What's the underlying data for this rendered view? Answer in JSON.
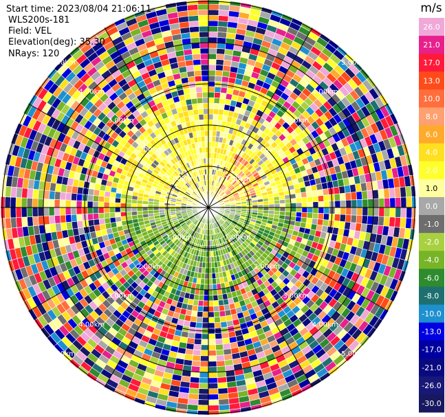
{
  "header": {
    "start_time": "Start time: 2023/08/04 21:06:11",
    "instrument": "WLS200s-181",
    "field": "Field: VEL",
    "elevation": "Elevation(deg): 35.30",
    "nrays": "NRays: 120"
  },
  "colorbar": {
    "unit": "m/s",
    "labels": [
      "26.0",
      "21.0",
      "17.0",
      "13.0",
      "10.0",
      "8.0",
      "6.0",
      "4.0",
      "2.0",
      "1.0",
      "0.0",
      "-1.0",
      "-2.0",
      "-4.0",
      "-6.0",
      "-8.0",
      "-10.0",
      "-13.0",
      "-17.0",
      "-21.0",
      "-26.0",
      "-30.0"
    ],
    "colors": [
      "#f0a8d8",
      "#e8208c",
      "#ff1a3a",
      "#ff4a1a",
      "#ff6e3c",
      "#ffa070",
      "#ffaa2a",
      "#ffe020",
      "#ffff2a",
      "#ffffa0",
      "#a8a8a8",
      "#6e6e6e",
      "#a8d040",
      "#78b428",
      "#2e8b2e",
      "#1e7070",
      "#1e90d0",
      "#0000e0",
      "#0000a0",
      "#0a0a80",
      "#181878",
      "#181860"
    ]
  },
  "chart_data": {
    "type": "heatmap",
    "projection": "polar PPI",
    "field": "VEL",
    "unit": "m/s",
    "nrays": 120,
    "range_rings_km": [
      1.0,
      2.0,
      3.0,
      4.0,
      5.0
    ],
    "ring_labels": [
      "1.00km",
      "2.00km",
      "3.00km",
      "4.00km",
      "5.00km"
    ],
    "value_range": [
      -30.0,
      26.0
    ],
    "pattern": {
      "near_range_north": "positive velocity (yellow, ~2-4 m/s, orange patch to NE)",
      "near_range_south": "negative velocity (green, ~-4 to -6 m/s)",
      "far_range": "noise (random colors across full scale)"
    }
  }
}
